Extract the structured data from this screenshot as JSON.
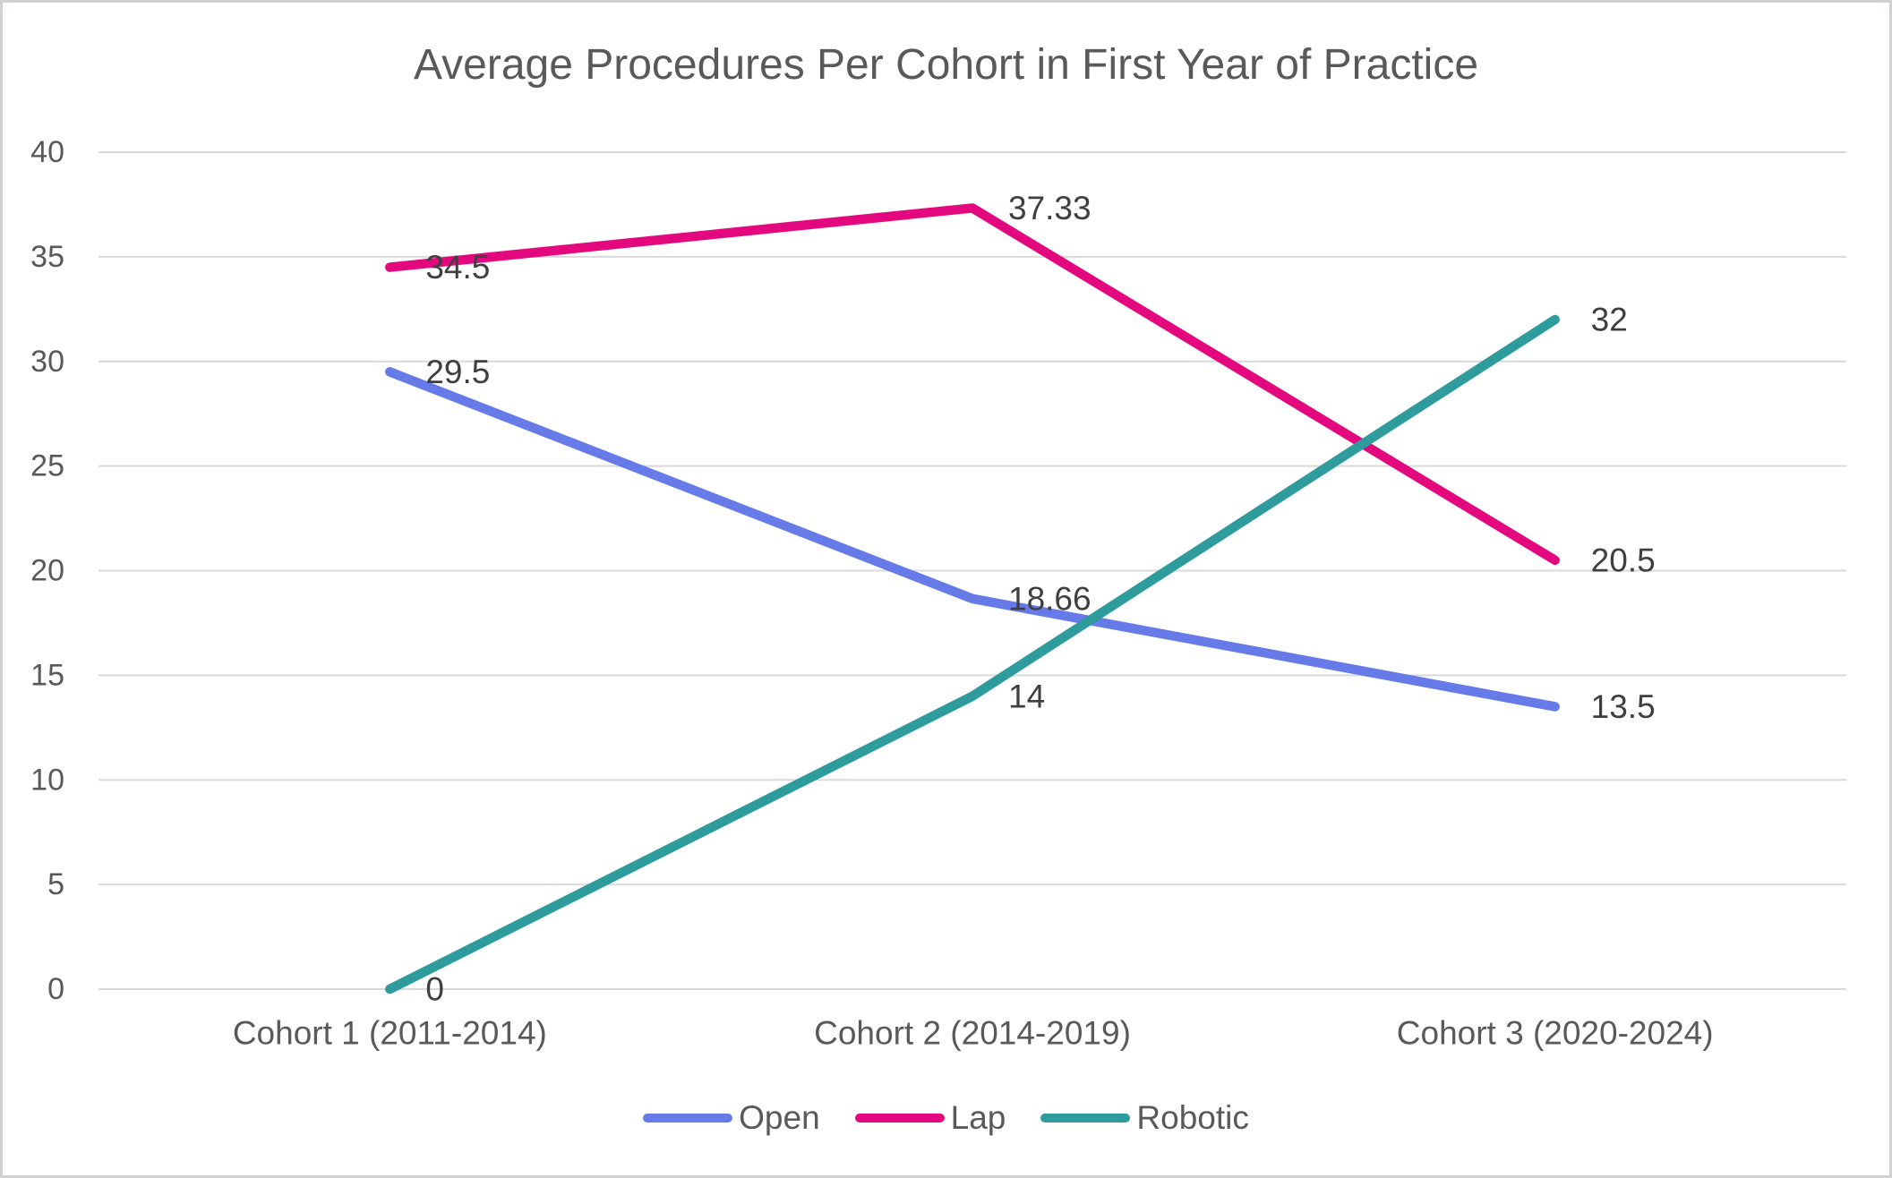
{
  "chart_data": {
    "type": "line",
    "title": "Average Procedures Per Cohort in First Year of Practice",
    "categories": [
      "Cohort 1 (2011-2014)",
      "Cohort 2 (2014-2019)",
      "Cohort 3 (2020-2024)"
    ],
    "yticks": [
      "0",
      "5",
      "10",
      "15",
      "20",
      "25",
      "30",
      "35",
      "40"
    ],
    "ylim": [
      0,
      40
    ],
    "grid": true,
    "legend_position": "bottom",
    "series": [
      {
        "name": "Open",
        "color": "#667be8",
        "values": [
          29.5,
          18.66,
          13.5
        ],
        "labels": [
          "29.5",
          "18.66",
          "13.5"
        ]
      },
      {
        "name": "Lap",
        "color": "#e4087f",
        "values": [
          34.5,
          37.33,
          20.5
        ],
        "labels": [
          "34.5",
          "37.33",
          "20.5"
        ]
      },
      {
        "name": "Robotic",
        "color": "#2e9c9c",
        "values": [
          0,
          14,
          32
        ],
        "labels": [
          "0",
          "14",
          "32"
        ]
      }
    ],
    "colors": {
      "title_text": "#595959",
      "axis_text": "#595959",
      "data_label_text": "#3f3f3f",
      "gridline": "#d9d9d9",
      "background": "#ffffff",
      "border": "#d2d0d0"
    }
  }
}
